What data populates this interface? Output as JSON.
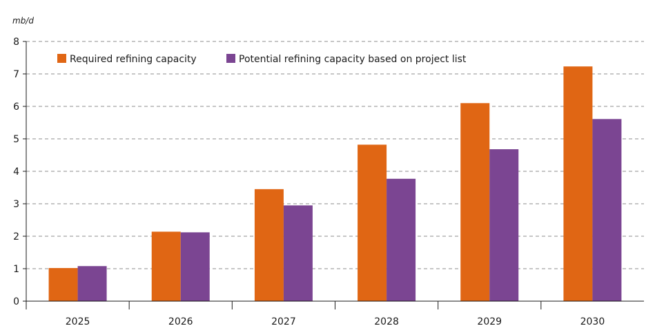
{
  "chart_data": {
    "type": "bar",
    "unit_label": "mb/d",
    "categories": [
      "2025",
      "2026",
      "2027",
      "2028",
      "2029",
      "2030"
    ],
    "series": [
      {
        "name": "Required refining capacity",
        "color": "#e06614",
        "values": [
          1.02,
          2.14,
          3.45,
          4.82,
          6.1,
          7.23
        ]
      },
      {
        "name": "Potential refining capacity based on project list",
        "color": "#7b4592",
        "values": [
          1.08,
          2.12,
          2.95,
          3.77,
          4.68,
          5.61
        ]
      }
    ],
    "ylim": [
      0,
      8
    ],
    "yticks": [
      "0",
      "1",
      "2",
      "3",
      "4",
      "5",
      "6",
      "7",
      "8"
    ],
    "grid": "horizontal-dashed",
    "legend_position": "top-left"
  }
}
